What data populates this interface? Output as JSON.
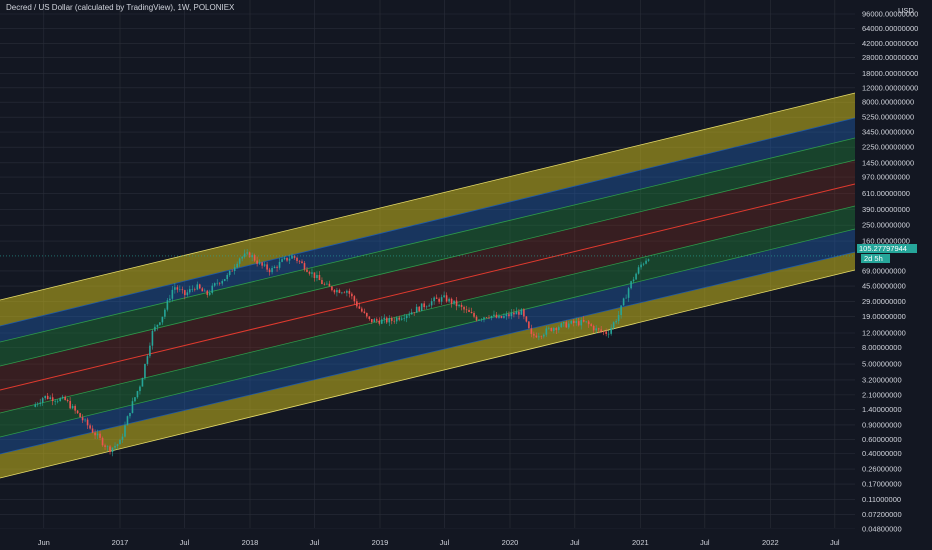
{
  "header": {
    "title": "Decred / US Dollar (calculated by TradingView), 1W, POLONIEX"
  },
  "price_axis": {
    "currency": "USD",
    "labels": [
      "96000.00000000",
      "64000.00000000",
      "42000.00000000",
      "28000.00000000",
      "18000.00000000",
      "12000.00000000",
      "8000.00000000",
      "5250.00000000",
      "3450.00000000",
      "2250.00000000",
      "1450.00000000",
      "970.00000000",
      "610.00000000",
      "390.00000000",
      "250.00000000",
      "160.00000000",
      "105.27797944",
      "69.00000000",
      "45.00000000",
      "29.00000000",
      "19.00000000",
      "12.00000000",
      "8.00000000",
      "5.00000000",
      "3.20000000",
      "2.10000000",
      "1.40000000",
      "0.90000000",
      "0.60000000",
      "0.40000000",
      "0.26000000",
      "0.17000000",
      "0.11000000",
      "0.07200000",
      "0.04800000"
    ],
    "current_price": "105.27797944",
    "countdown": "2d 5h"
  },
  "time_axis": {
    "labels": [
      "Jun",
      "2017",
      "Jul",
      "2018",
      "Jul",
      "2019",
      "Jul",
      "2020",
      "Jul",
      "2021",
      "Jul",
      "2022",
      "Jul"
    ]
  },
  "colors": {
    "background": "#131722",
    "grid": "#2a2e39",
    "up": "#26a69a",
    "down": "#ef5350",
    "band_outer": "#c9b81c",
    "band_blue": "#1e5aa8",
    "band_green": "#1f7a3a",
    "band_center": "#7a2a1f",
    "center_line": "#e03a2e",
    "boundary_line": "#e8dd6a"
  },
  "chart_data": {
    "type": "candlestick",
    "title": "Decred / US Dollar (calculated by TradingView), 1W, POLONIEX",
    "y_scale": "log",
    "ylim": [
      0.048,
      96000
    ],
    "x_ticks": [
      "Jun 2016",
      "2017",
      "Jul 2017",
      "2018",
      "Jul 2018",
      "2019",
      "Jul 2019",
      "2020",
      "Jul 2020",
      "2021",
      "Jul 2021",
      "2022",
      "Jul 2022"
    ],
    "price_path": [
      {
        "date": "2016-05",
        "close": 1.5
      },
      {
        "date": "2016-06",
        "close": 2.0
      },
      {
        "date": "2016-08",
        "close": 1.8
      },
      {
        "date": "2016-10",
        "close": 0.9
      },
      {
        "date": "2016-12",
        "close": 0.45
      },
      {
        "date": "2017-01",
        "close": 0.55
      },
      {
        "date": "2017-02",
        "close": 1.5
      },
      {
        "date": "2017-03",
        "close": 3.0
      },
      {
        "date": "2017-04",
        "close": 12
      },
      {
        "date": "2017-05",
        "close": 20
      },
      {
        "date": "2017-06",
        "close": 45
      },
      {
        "date": "2017-07",
        "close": 35
      },
      {
        "date": "2017-08",
        "close": 45
      },
      {
        "date": "2017-09",
        "close": 35
      },
      {
        "date": "2017-10",
        "close": 50
      },
      {
        "date": "2017-11",
        "close": 60
      },
      {
        "date": "2017-12",
        "close": 100
      },
      {
        "date": "2018-01",
        "close": 110
      },
      {
        "date": "2018-02",
        "close": 80
      },
      {
        "date": "2018-03",
        "close": 70
      },
      {
        "date": "2018-04",
        "close": 90
      },
      {
        "date": "2018-05",
        "close": 105
      },
      {
        "date": "2018-06",
        "close": 80
      },
      {
        "date": "2018-07",
        "close": 60
      },
      {
        "date": "2018-08",
        "close": 45
      },
      {
        "date": "2018-09",
        "close": 40
      },
      {
        "date": "2018-10",
        "close": 40
      },
      {
        "date": "2018-11",
        "close": 25
      },
      {
        "date": "2018-12",
        "close": 17
      },
      {
        "date": "2019-02",
        "close": 17
      },
      {
        "date": "2019-04",
        "close": 22
      },
      {
        "date": "2019-06",
        "close": 30
      },
      {
        "date": "2019-07",
        "close": 32
      },
      {
        "date": "2019-08",
        "close": 27
      },
      {
        "date": "2019-10",
        "close": 18
      },
      {
        "date": "2019-11",
        "close": 20
      },
      {
        "date": "2019-12",
        "close": 18
      },
      {
        "date": "2020-01",
        "close": 20
      },
      {
        "date": "2020-02",
        "close": 22
      },
      {
        "date": "2020-03",
        "close": 11
      },
      {
        "date": "2020-04",
        "close": 12
      },
      {
        "date": "2020-05",
        "close": 14
      },
      {
        "date": "2020-06",
        "close": 15
      },
      {
        "date": "2020-07",
        "close": 16
      },
      {
        "date": "2020-08",
        "close": 16
      },
      {
        "date": "2020-09",
        "close": 13
      },
      {
        "date": "2020-10",
        "close": 12
      },
      {
        "date": "2020-11",
        "close": 20
      },
      {
        "date": "2020-12",
        "close": 45
      },
      {
        "date": "2021-01",
        "close": 80
      },
      {
        "date": "2021-01-25",
        "close": 105.28
      }
    ],
    "channel": {
      "bands": [
        "outer-upper",
        "blue-upper",
        "green-upper",
        "center-upper",
        "center-lower",
        "green-lower",
        "blue-lower",
        "outer-lower"
      ]
    }
  }
}
